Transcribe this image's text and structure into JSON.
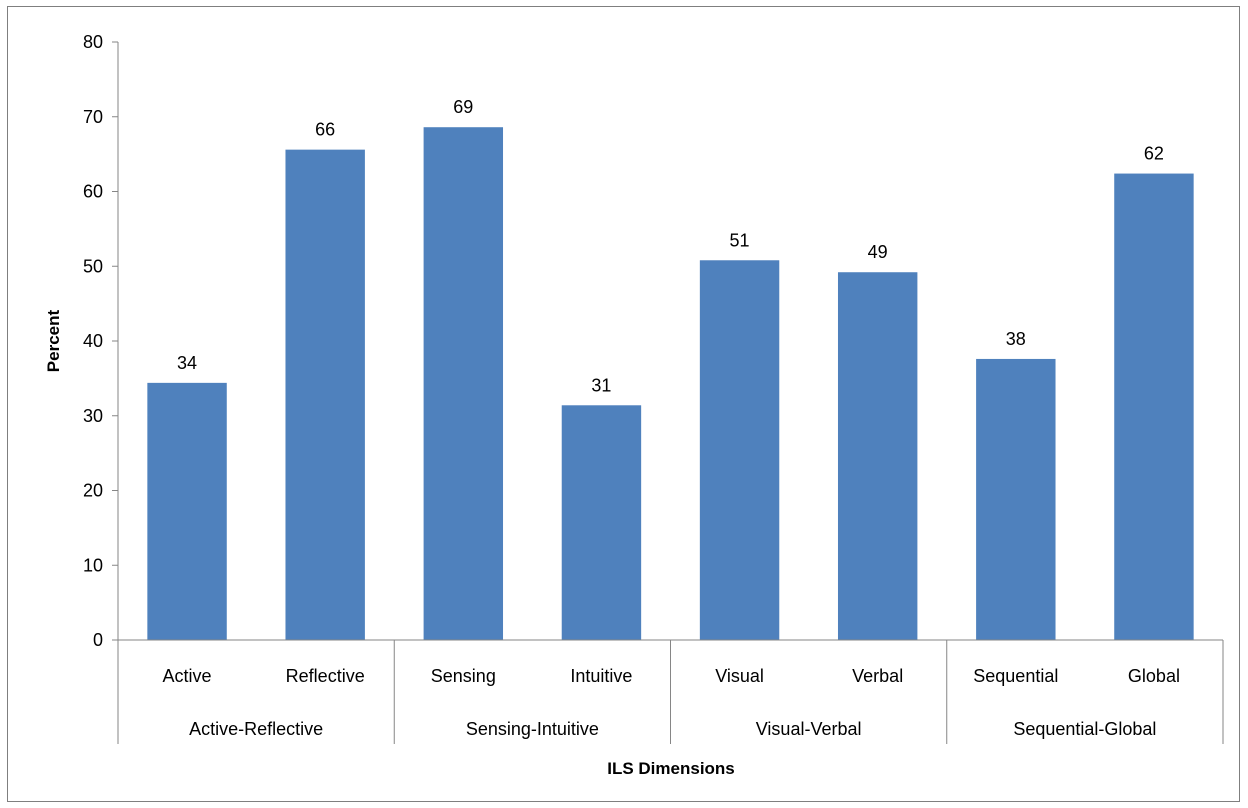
{
  "chart_data": {
    "type": "bar",
    "title": "",
    "xlabel": "ILS Dimensions",
    "ylabel": "Percent",
    "ylim": [
      0,
      80
    ],
    "yticks": [
      0,
      10,
      20,
      30,
      40,
      50,
      60,
      70,
      80
    ],
    "grid": false,
    "legend": "none",
    "bar_color": "#4f81bd",
    "groups": [
      {
        "label": "Active-Reflective",
        "categories": [
          "Active",
          "Reflective"
        ]
      },
      {
        "label": "Sensing-Intuitive",
        "categories": [
          "Sensing",
          "Intuitive"
        ]
      },
      {
        "label": "Visual-Verbal",
        "categories": [
          "Visual",
          "Verbal"
        ]
      },
      {
        "label": "Sequential-Global",
        "categories": [
          "Sequential",
          "Global"
        ]
      }
    ],
    "categories": [
      "Active",
      "Reflective",
      "Sensing",
      "Intuitive",
      "Visual",
      "Verbal",
      "Sequential",
      "Global"
    ],
    "values": [
      34.4,
      65.6,
      68.6,
      31.4,
      50.8,
      49.2,
      37.6,
      62.4
    ],
    "data_labels": [
      "34",
      "66",
      "69",
      "31",
      "51",
      "49",
      "38",
      "62"
    ]
  }
}
